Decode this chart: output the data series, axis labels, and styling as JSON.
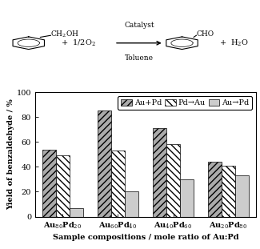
{
  "categories": [
    "Au$_{80}$Pd$_{20}$",
    "Au$_{60}$Pd$_{40}$",
    "Au$_{40}$Pd$_{60}$",
    "Au$_{20}$Pd$_{80}$"
  ],
  "series_AuPd": [
    54,
    85,
    71,
    44
  ],
  "series_PdAu": [
    49,
    53,
    58,
    41
  ],
  "series_AuPd2": [
    7,
    20,
    30,
    33
  ],
  "ylabel": "Yield of benzaldehyde / %",
  "xlabel": "Sample compositions / mole ratio of Au:Pd",
  "ylim": [
    0,
    100
  ],
  "yticks": [
    0,
    20,
    40,
    60,
    80,
    100
  ],
  "legend_labels": [
    "Au+Pd",
    "Pd→Au",
    "Au→Pd"
  ],
  "hatch_AuPd": "////",
  "hatch_PdAu": "\\\\\\\\",
  "hatch_AuPd2": "====",
  "fc_AuPd": "#aaaaaa",
  "fc_PdAu": "#ffffff",
  "fc_AuPd2": "#cccccc",
  "bar_edgecolor": "#000000",
  "bar_width": 0.25,
  "axis_fontsize": 7,
  "tick_fontsize": 7,
  "legend_fontsize": 7
}
